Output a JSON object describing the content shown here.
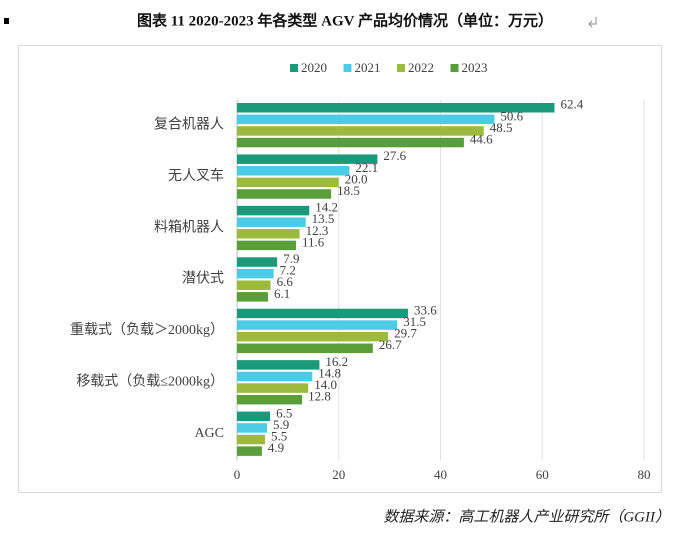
{
  "chart_data": {
    "type": "bar",
    "orientation": "horizontal",
    "title": "图表 11  2020-2023 年各类型 AGV 产品均价情况（单位：万元）",
    "source": "数据来源：高工机器人产业研究所（GGII）",
    "categories": [
      "复合机器人",
      "无人叉车",
      "料箱机器人",
      "潜伏式",
      "重载式（负载＞2000kg）",
      "移载式（负载≤2000kg）",
      "AGC"
    ],
    "series": [
      {
        "name": "2020",
        "color": "#1a9a7a",
        "values": [
          62.4,
          27.6,
          14.2,
          7.9,
          33.6,
          16.2,
          6.5
        ],
        "value_labels": [
          "62.4",
          "27.6",
          "14.2",
          "7.9",
          "33.6",
          "16.2",
          "6.5"
        ]
      },
      {
        "name": "2021",
        "color": "#4ccbe6",
        "values": [
          50.6,
          22.1,
          13.5,
          7.2,
          31.5,
          14.8,
          5.9
        ],
        "value_labels": [
          "50.6",
          "22.1",
          "13.5",
          "7.2",
          "31.5",
          "14.8",
          "5.9"
        ]
      },
      {
        "name": "2022",
        "color": "#9cbb3c",
        "values": [
          48.5,
          20.0,
          12.3,
          6.6,
          29.7,
          14.0,
          5.5
        ],
        "value_labels": [
          "48.5",
          "20.0",
          "12.3",
          "6.6",
          "29.7",
          "14.0",
          "5.5"
        ]
      },
      {
        "name": "2023",
        "color": "#5a9e3a",
        "values": [
          44.6,
          18.5,
          11.6,
          6.1,
          26.7,
          12.8,
          4.9
        ],
        "value_labels": [
          "44.6",
          "18.5",
          "11.6",
          "6.1",
          "26.7",
          "12.8",
          "4.9"
        ]
      }
    ],
    "xlim": [
      0,
      80
    ],
    "xticks": [
      0,
      20,
      40,
      60,
      80
    ],
    "grid": true,
    "legend": "top"
  }
}
